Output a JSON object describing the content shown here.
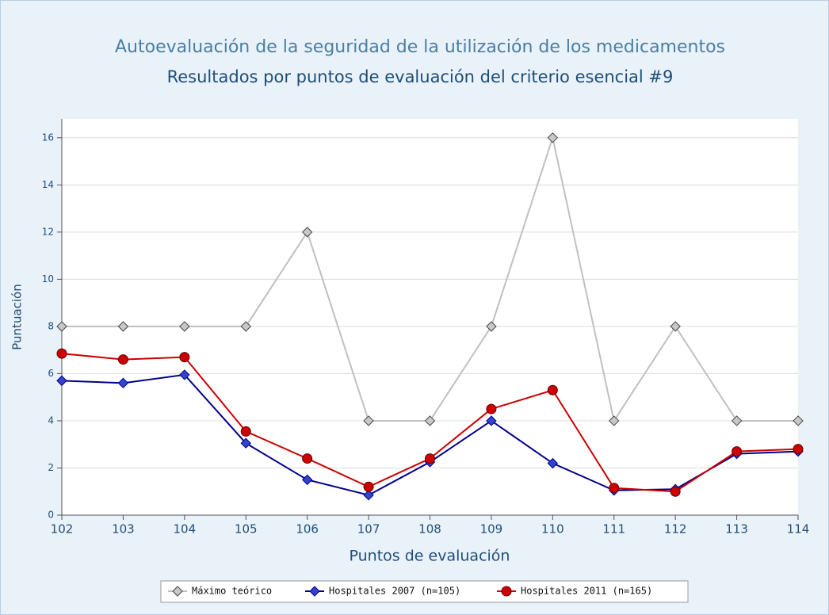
{
  "chart_data": {
    "type": "line",
    "title": "Autoevaluación de la seguridad de la utilización de los medicamentos",
    "subtitle": "Resultados por puntos de evaluación del criterio esencial #9",
    "x_label": "Puntos de evaluación",
    "y_label": "Puntuación",
    "categories": [
      "102",
      "103",
      "104",
      "105",
      "106",
      "107",
      "108",
      "109",
      "110",
      "111",
      "112",
      "113",
      "114"
    ],
    "series": [
      {
        "name": "Máximo teórico",
        "color": "#c0c0c0",
        "marker": "diamond",
        "values": [
          8,
          8,
          8,
          8,
          12,
          4,
          4,
          8,
          16,
          4,
          8,
          4,
          4
        ]
      },
      {
        "name": "Hospitales 2007 (n=105)",
        "color": "#00008b",
        "marker": "diamond",
        "values": [
          5.7,
          5.6,
          5.95,
          3.05,
          1.5,
          0.85,
          2.25,
          4.0,
          2.2,
          1.05,
          1.1,
          2.6,
          2.7
        ]
      },
      {
        "name": "Hospitales 2011 (n=165)",
        "color": "#cc0000",
        "marker": "circle",
        "values": [
          6.85,
          6.6,
          6.7,
          3.55,
          2.4,
          1.2,
          2.4,
          4.5,
          5.3,
          1.15,
          1.0,
          2.7,
          2.8
        ]
      }
    ],
    "ylim": [
      0,
      16.8
    ],
    "yticks": [
      0,
      2,
      4,
      6,
      8,
      10,
      12,
      14,
      16
    ],
    "grid": true,
    "legend": "bottom"
  }
}
